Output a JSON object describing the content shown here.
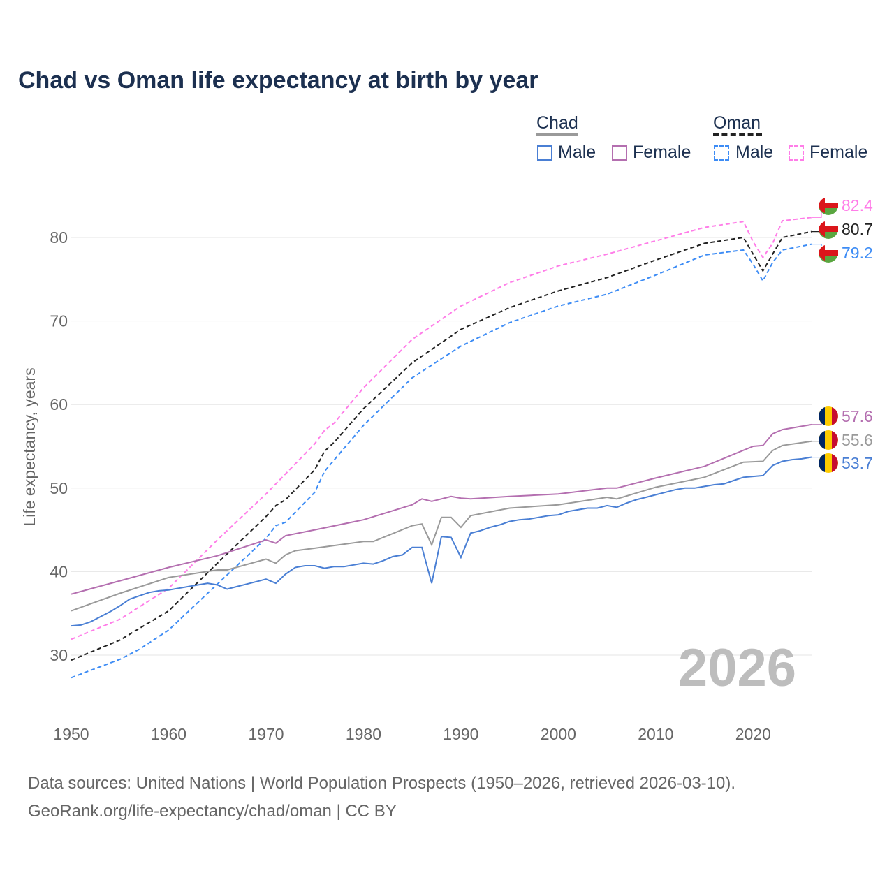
{
  "chart_data": {
    "type": "line",
    "title": "Chad vs Oman life expectancy at birth by year",
    "xlabel": "",
    "ylabel": "Life expectancy, years",
    "xlim": [
      1950,
      2026
    ],
    "ylim": [
      25,
      85
    ],
    "x_ticks": [
      "1950",
      "1960",
      "1970",
      "1980",
      "1990",
      "2000",
      "2010",
      "2020"
    ],
    "y_ticks": [
      "30",
      "40",
      "50",
      "60",
      "70",
      "80"
    ],
    "year_watermark": "2026",
    "legend": {
      "groups": [
        {
          "name": "Chad",
          "items": [
            "Male",
            "Female"
          ]
        },
        {
          "name": "Oman",
          "items": [
            "Male",
            "Female"
          ]
        }
      ],
      "placement": "top-right"
    },
    "series": [
      {
        "name": "Oman Female",
        "label": "82.4",
        "color": "#ff7de8",
        "dash": true,
        "x": [
          1950,
          1955,
          1960,
          1965,
          1970,
          1975,
          1976,
          1977,
          1980,
          1985,
          1990,
          1995,
          2000,
          2005,
          2010,
          2015,
          2019,
          2020,
          2021,
          2022,
          2023,
          2026
        ],
        "values": [
          31.9,
          34.3,
          38.0,
          43.8,
          49.3,
          55.3,
          56.9,
          57.8,
          62.0,
          67.8,
          71.8,
          74.6,
          76.6,
          78.0,
          79.6,
          81.2,
          81.9,
          79.5,
          77.6,
          79.3,
          82.0,
          82.4
        ]
      },
      {
        "name": "Oman",
        "label": "80.7",
        "color": "#222222",
        "dash": true,
        "x": [
          1950,
          1955,
          1960,
          1965,
          1970,
          1971,
          1972,
          1975,
          1976,
          1977,
          1980,
          1985,
          1990,
          1995,
          2000,
          2005,
          2010,
          2015,
          2019,
          2020,
          2021,
          2022,
          2023,
          2026
        ],
        "values": [
          29.4,
          31.8,
          35.3,
          41.0,
          46.6,
          47.9,
          48.6,
          52.2,
          54.4,
          55.5,
          59.5,
          65.0,
          69.0,
          71.6,
          73.6,
          75.2,
          77.3,
          79.3,
          80.0,
          78.0,
          76.0,
          78.0,
          80.0,
          80.7
        ]
      },
      {
        "name": "Oman Male",
        "label": "79.2",
        "color": "#3d8cf5",
        "dash": true,
        "x": [
          1950,
          1955,
          1957,
          1960,
          1965,
          1970,
          1971,
          1972,
          1975,
          1976,
          1980,
          1985,
          1990,
          1995,
          2000,
          2005,
          2010,
          2015,
          2019,
          2020,
          2021,
          2022,
          2023,
          2026
        ],
        "values": [
          27.3,
          29.5,
          30.7,
          33.0,
          38.5,
          44.0,
          45.5,
          45.9,
          49.5,
          52.0,
          57.5,
          63.2,
          67.0,
          69.8,
          71.8,
          73.2,
          75.5,
          77.9,
          78.5,
          76.8,
          74.8,
          77.0,
          78.5,
          79.2
        ]
      },
      {
        "name": "Chad Female",
        "label": "57.6",
        "color": "#b46fb0",
        "dash": false,
        "x": [
          1950,
          1955,
          1960,
          1965,
          1970,
          1971,
          1972,
          1975,
          1980,
          1985,
          1986,
          1987,
          1988,
          1989,
          1990,
          1991,
          1995,
          2000,
          2005,
          2006,
          2010,
          2015,
          2020,
          2021,
          2022,
          2023,
          2026
        ],
        "values": [
          37.3,
          38.9,
          40.5,
          41.9,
          43.8,
          43.4,
          44.3,
          45.0,
          46.2,
          48.0,
          48.7,
          48.4,
          48.7,
          49.0,
          48.8,
          48.7,
          49.0,
          49.3,
          50.0,
          50.0,
          51.2,
          52.6,
          55.0,
          55.1,
          56.5,
          57.0,
          57.6
        ]
      },
      {
        "name": "Chad",
        "label": "55.6",
        "color": "#9a9a9a",
        "dash": false,
        "x": [
          1950,
          1955,
          1960,
          1965,
          1966,
          1970,
          1971,
          1972,
          1973,
          1975,
          1980,
          1981,
          1985,
          1986,
          1987,
          1988,
          1989,
          1990,
          1991,
          1995,
          2000,
          2005,
          2006,
          2010,
          2015,
          2019,
          2021,
          2022,
          2023,
          2026
        ],
        "values": [
          35.3,
          37.4,
          39.3,
          40.2,
          40.2,
          41.5,
          41.0,
          42.0,
          42.5,
          42.8,
          43.6,
          43.6,
          45.5,
          45.7,
          43.2,
          46.5,
          46.5,
          45.3,
          46.7,
          47.6,
          48.0,
          48.9,
          48.7,
          50.1,
          51.3,
          53.1,
          53.2,
          54.5,
          55.1,
          55.6
        ]
      },
      {
        "name": "Chad Male",
        "label": "53.7",
        "color": "#4a7fd4",
        "dash": false,
        "x": [
          1950,
          1951,
          1952,
          1953,
          1954,
          1955,
          1956,
          1957,
          1958,
          1959,
          1960,
          1961,
          1962,
          1963,
          1964,
          1965,
          1966,
          1967,
          1968,
          1969,
          1970,
          1971,
          1972,
          1973,
          1974,
          1975,
          1976,
          1977,
          1978,
          1979,
          1980,
          1981,
          1982,
          1983,
          1984,
          1985,
          1986,
          1987,
          1988,
          1989,
          1990,
          1991,
          1992,
          1993,
          1994,
          1995,
          1996,
          1997,
          1998,
          1999,
          2000,
          2001,
          2002,
          2003,
          2004,
          2005,
          2006,
          2007,
          2008,
          2009,
          2010,
          2011,
          2012,
          2013,
          2014,
          2015,
          2016,
          2017,
          2018,
          2019,
          2020,
          2021,
          2022,
          2023,
          2024,
          2025,
          2026
        ],
        "values": [
          33.5,
          33.6,
          34.0,
          34.6,
          35.2,
          35.9,
          36.7,
          37.1,
          37.5,
          37.7,
          37.8,
          38.0,
          38.2,
          38.4,
          38.6,
          38.4,
          37.9,
          38.2,
          38.5,
          38.8,
          39.1,
          38.6,
          39.7,
          40.5,
          40.7,
          40.7,
          40.4,
          40.6,
          40.6,
          40.8,
          41.0,
          40.9,
          41.3,
          41.8,
          42.0,
          42.9,
          42.9,
          38.6,
          44.2,
          44.1,
          41.7,
          44.6,
          44.9,
          45.3,
          45.6,
          46.0,
          46.2,
          46.3,
          46.5,
          46.7,
          46.8,
          47.2,
          47.4,
          47.6,
          47.6,
          47.9,
          47.7,
          48.2,
          48.6,
          48.9,
          49.2,
          49.5,
          49.8,
          50.0,
          50.0,
          50.2,
          50.4,
          50.5,
          50.9,
          51.3,
          51.4,
          51.5,
          52.7,
          53.2,
          53.4,
          53.5,
          53.7
        ]
      }
    ]
  },
  "legend_labels": {
    "chad": "Chad",
    "oman": "Oman",
    "male": "Male",
    "female": "Female"
  },
  "source": {
    "line1": "Data sources: United Nations | World Population Prospects (1950–2026, retrieved 2026-03-10).",
    "line2": "GeoRank.org/life-expectancy/chad/oman | CC BY"
  }
}
